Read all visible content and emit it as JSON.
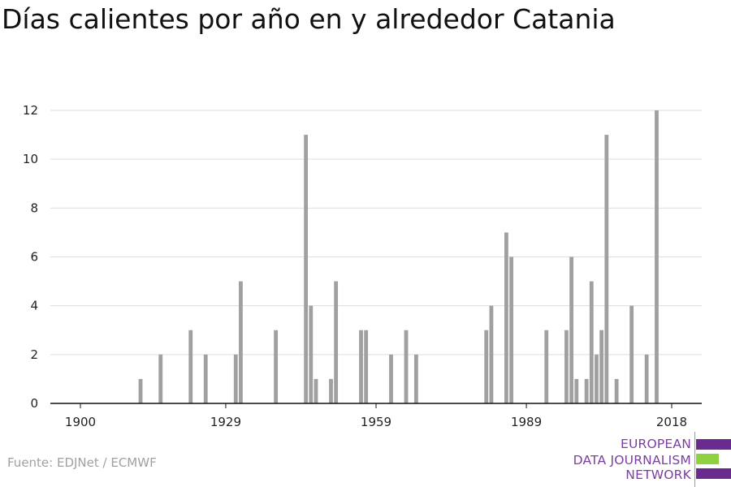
{
  "title": "Días calientes por año en y alrededor Catania",
  "source": "Fuente: EDJNet / ECMWF",
  "logo": {
    "line1": "EUROPEAN",
    "line2": "DATA JOURNALISM",
    "line3": "NETWORK",
    "colors": [
      "#6a2a8e",
      "#8fd13f",
      "#6a2a8e"
    ]
  },
  "chart_data": {
    "type": "bar",
    "title": "Días calientes por año en y alrededor Catania",
    "xlabel": "",
    "ylabel": "",
    "xlim": [
      1894,
      2024
    ],
    "ylim": [
      0,
      12
    ],
    "xticks": [
      1900,
      1929,
      1959,
      1989,
      2018
    ],
    "yticks": [
      0,
      2,
      4,
      6,
      8,
      10,
      12
    ],
    "grid": true,
    "bar_color": "#a0a0a0",
    "series": [
      {
        "x": [
          1912,
          1916,
          1922,
          1925,
          1931,
          1932,
          1939,
          1945,
          1946,
          1947,
          1950,
          1951,
          1956,
          1957,
          1962,
          1965,
          1967,
          1981,
          1982,
          1985,
          1986,
          1993,
          1997,
          1998,
          1999,
          2001,
          2002,
          2003,
          2004,
          2005,
          2007,
          2010,
          2013,
          2015
        ],
        "y": [
          1,
          2,
          3,
          2,
          2,
          5,
          3,
          11,
          4,
          1,
          1,
          5,
          3,
          3,
          2,
          3,
          2,
          3,
          4,
          7,
          6,
          3,
          3,
          6,
          1,
          1,
          5,
          2,
          3,
          11,
          1,
          4,
          2,
          12
        ]
      }
    ]
  }
}
